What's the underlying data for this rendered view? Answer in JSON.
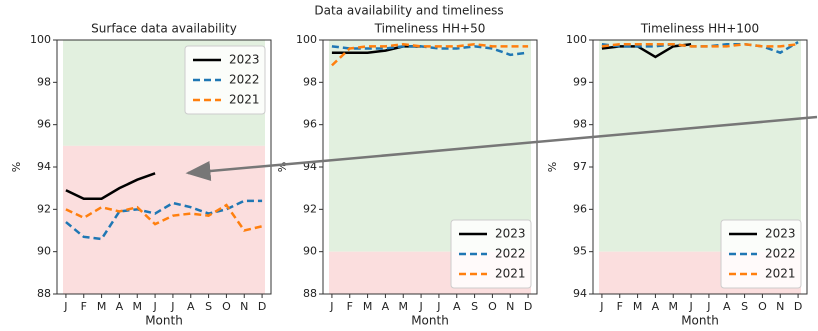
{
  "title": "Data availability and timeliness",
  "chart_data": [
    {
      "type": "line",
      "title": "Surface data availability",
      "xlabel": "Month",
      "ylabel": "%",
      "categories": [
        "J",
        "F",
        "M",
        "A",
        "M",
        "J",
        "J",
        "A",
        "S",
        "O",
        "N",
        "D"
      ],
      "ylim": [
        88,
        100
      ],
      "yticks": [
        88,
        90,
        92,
        94,
        96,
        98,
        100
      ],
      "legend": "upper right",
      "bands": [
        {
          "from": 95,
          "to": 100,
          "color": "#e2f0df"
        },
        {
          "from": 88,
          "to": 95,
          "color": "#fbdede"
        }
      ],
      "series": [
        {
          "name": "2023",
          "color": "#000000",
          "linestyle": "solid",
          "values": [
            92.9,
            92.5,
            92.5,
            93.0,
            93.4,
            93.7,
            null,
            null,
            null,
            null,
            null,
            null
          ]
        },
        {
          "name": "2022",
          "color": "#1f77b4",
          "linestyle": "dashed",
          "values": [
            91.4,
            90.7,
            90.6,
            91.9,
            92.0,
            91.8,
            92.3,
            92.1,
            91.8,
            92.0,
            92.4,
            92.4
          ]
        },
        {
          "name": "2021",
          "color": "#ff7f0e",
          "linestyle": "dashed",
          "values": [
            92.0,
            91.6,
            92.1,
            91.9,
            92.1,
            91.3,
            91.7,
            91.8,
            91.7,
            92.2,
            91.0,
            91.2
          ]
        }
      ]
    },
    {
      "type": "line",
      "title": "Timeliness HH+50",
      "xlabel": "Month",
      "ylabel": "%",
      "categories": [
        "J",
        "F",
        "M",
        "A",
        "M",
        "J",
        "J",
        "A",
        "S",
        "O",
        "N",
        "D"
      ],
      "ylim": [
        88,
        100
      ],
      "yticks": [
        88,
        90,
        92,
        94,
        96,
        98,
        100
      ],
      "legend": "lower right",
      "bands": [
        {
          "from": 90,
          "to": 100,
          "color": "#e2f0df"
        },
        {
          "from": 88,
          "to": 90,
          "color": "#fbdede"
        }
      ],
      "series": [
        {
          "name": "2023",
          "color": "#000000",
          "linestyle": "solid",
          "values": [
            99.4,
            99.4,
            99.4,
            99.5,
            99.7,
            99.7,
            null,
            null,
            null,
            null,
            null,
            null
          ]
        },
        {
          "name": "2022",
          "color": "#1f77b4",
          "linestyle": "dashed",
          "values": [
            99.7,
            99.6,
            99.6,
            99.6,
            99.7,
            99.7,
            99.6,
            99.6,
            99.7,
            99.6,
            99.3,
            99.4
          ]
        },
        {
          "name": "2021",
          "color": "#ff7f0e",
          "linestyle": "dashed",
          "values": [
            98.8,
            99.6,
            99.7,
            99.7,
            99.8,
            99.7,
            99.7,
            99.7,
            99.8,
            99.7,
            99.7,
            99.7
          ]
        }
      ]
    },
    {
      "type": "line",
      "title": "Timeliness HH+100",
      "xlabel": "Month",
      "ylabel": "%",
      "categories": [
        "J",
        "F",
        "M",
        "A",
        "M",
        "J",
        "J",
        "A",
        "S",
        "O",
        "N",
        "D"
      ],
      "ylim": [
        94,
        100
      ],
      "yticks": [
        94,
        95,
        96,
        97,
        98,
        99,
        100
      ],
      "legend": "lower right",
      "bands": [
        {
          "from": 95,
          "to": 100,
          "color": "#e2f0df"
        },
        {
          "from": 94,
          "to": 95,
          "color": "#fbdede"
        }
      ],
      "series": [
        {
          "name": "2023",
          "color": "#000000",
          "linestyle": "solid",
          "values": [
            99.8,
            99.85,
            99.85,
            99.6,
            99.85,
            99.9,
            null,
            null,
            null,
            null,
            null,
            null
          ]
        },
        {
          "name": "2022",
          "color": "#1f77b4",
          "linestyle": "dashed",
          "values": [
            99.9,
            99.85,
            99.85,
            99.85,
            99.9,
            99.85,
            99.85,
            99.9,
            99.9,
            99.85,
            99.7,
            99.95
          ]
        },
        {
          "name": "2021",
          "color": "#ff7f0e",
          "linestyle": "dashed",
          "values": [
            99.85,
            99.9,
            99.9,
            99.9,
            99.9,
            99.85,
            99.85,
            99.85,
            99.9,
            99.85,
            99.85,
            99.9
          ]
        }
      ]
    }
  ]
}
